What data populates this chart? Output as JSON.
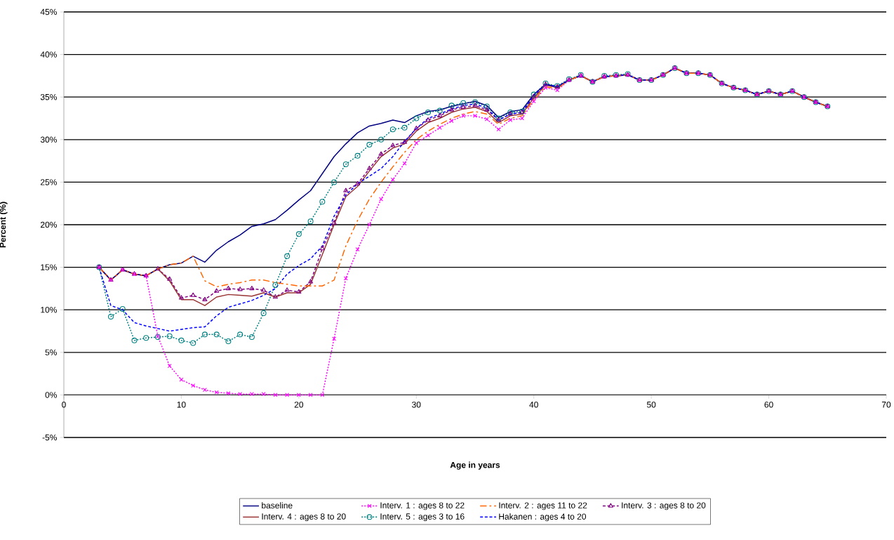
{
  "chart_data": {
    "type": "line",
    "xlabel": "Age in years",
    "ylabel": "Percent (%)",
    "x": [
      3,
      4,
      5,
      6,
      7,
      8,
      9,
      10,
      11,
      12,
      13,
      14,
      15,
      16,
      17,
      18,
      19,
      20,
      21,
      22,
      23,
      24,
      25,
      26,
      27,
      28,
      29,
      30,
      31,
      32,
      33,
      34,
      35,
      36,
      37,
      38,
      39,
      40,
      41,
      42,
      43,
      44,
      45,
      46,
      47,
      48,
      49,
      50,
      51,
      52,
      53,
      54,
      55,
      56,
      57,
      58,
      59,
      60,
      61,
      62,
      63,
      64,
      65
    ],
    "xlim": [
      0,
      70
    ],
    "xticks": [
      0,
      10,
      20,
      30,
      40,
      50,
      60,
      70
    ],
    "ylim": [
      -5,
      45
    ],
    "yticks": [
      {
        "value": -5,
        "label": "-5%"
      },
      {
        "value": 0,
        "label": "0%"
      },
      {
        "value": 5,
        "label": "5%"
      },
      {
        "value": 10,
        "label": "10%"
      },
      {
        "value": 15,
        "label": "15%"
      },
      {
        "value": 20,
        "label": "20%"
      },
      {
        "value": 25,
        "label": "25%"
      },
      {
        "value": 30,
        "label": "30%"
      },
      {
        "value": 35,
        "label": "35%"
      },
      {
        "value": 40,
        "label": "40%"
      },
      {
        "value": 45,
        "label": "45%"
      }
    ],
    "grid": "y",
    "legend": "bottom",
    "series": [
      {
        "name": "baseline",
        "color": "#000080",
        "marker": "none",
        "line_style": "solid",
        "values": [
          15,
          13.5,
          14.7,
          14.2,
          14.0,
          14.8,
          15.3,
          15.5,
          16.3,
          15.6,
          17.0,
          18.0,
          18.8,
          19.8,
          20.1,
          20.6,
          21.7,
          22.9,
          24.0,
          26.0,
          28.0,
          29.5,
          30.8,
          31.6,
          31.9,
          32.3,
          32.0,
          32.8,
          33.3,
          33.5,
          33.9,
          34.2,
          34.5,
          34.0,
          32.6,
          33.3,
          33.5,
          35.3,
          36.5,
          36.2,
          37.0,
          37.5,
          36.8,
          37.4,
          37.5,
          37.6,
          37.0,
          37.0,
          37.6,
          38.4,
          37.8,
          37.8,
          37.6,
          36.6,
          36.1,
          35.8,
          35.3,
          35.7,
          35.3,
          35.7,
          35.0,
          34.4,
          33.9
        ]
      },
      {
        "name": "Interv. 1 : ages 8 to 22",
        "color": "#ff00ff",
        "marker": "cross",
        "line_style": "dotted",
        "values": [
          15,
          13.5,
          14.7,
          14.2,
          14.0,
          6.9,
          3.4,
          1.8,
          1.1,
          0.6,
          0.3,
          0.2,
          0.1,
          0.1,
          0.1,
          0,
          0,
          0,
          0,
          0,
          6.6,
          13.7,
          17.1,
          20.0,
          23.0,
          25.3,
          27.2,
          29.6,
          30.5,
          31.4,
          32.2,
          32.8,
          32.8,
          32.4,
          31.2,
          32.3,
          32.5,
          34.5,
          36.1,
          35.8,
          37.0,
          37.5,
          36.8,
          37.4,
          37.5,
          37.6,
          37.0,
          37.0,
          37.6,
          38.4,
          37.8,
          37.8,
          37.6,
          36.6,
          36.1,
          35.8,
          35.3,
          35.7,
          35.3,
          35.7,
          35.0,
          34.4,
          33.9
        ]
      },
      {
        "name": "Interv. 2 : ages 11 to 22",
        "color": "#ff6600",
        "marker": "none",
        "line_style": "dashdot",
        "values": [
          15,
          13.5,
          14.7,
          14.2,
          14.0,
          14.8,
          15.3,
          15.5,
          16.3,
          13.4,
          12.7,
          13.0,
          13.2,
          13.5,
          13.5,
          13.2,
          13.0,
          12.8,
          12.8,
          12.8,
          13.5,
          17.5,
          20.5,
          23.0,
          25.0,
          26.8,
          28.5,
          30.0,
          31.0,
          31.8,
          32.5,
          33.0,
          33.3,
          33.0,
          31.8,
          32.5,
          32.8,
          34.7,
          36.2,
          36.0,
          37.0,
          37.5,
          36.8,
          37.4,
          37.5,
          37.6,
          37.0,
          37.0,
          37.6,
          38.4,
          37.8,
          37.8,
          37.6,
          36.6,
          36.1,
          35.8,
          35.3,
          35.7,
          35.3,
          35.7,
          35.0,
          34.4,
          33.9
        ]
      },
      {
        "name": "Interv. 3 : ages 8 to 20",
        "color": "#800080",
        "marker": "triangle",
        "line_style": "dashed",
        "values": [
          15,
          13.5,
          14.7,
          14.2,
          14.0,
          14.8,
          13.6,
          11.4,
          11.7,
          11.2,
          12.2,
          12.5,
          12.4,
          12.5,
          12.3,
          11.5,
          12.3,
          12.1,
          13.3,
          17.2,
          20.2,
          24.0,
          24.8,
          26.6,
          28.3,
          29.3,
          29.7,
          31.3,
          32.3,
          32.8,
          33.5,
          33.8,
          34.0,
          33.5,
          32.3,
          33.0,
          33.2,
          35.0,
          36.5,
          36.2,
          37.0,
          37.5,
          36.8,
          37.4,
          37.5,
          37.6,
          37.0,
          37.0,
          37.6,
          38.4,
          37.8,
          37.8,
          37.6,
          36.6,
          36.1,
          35.8,
          35.3,
          35.7,
          35.3,
          35.7,
          35.0,
          34.4,
          33.9
        ]
      },
      {
        "name": "Interv. 4 : ages 8 to 20",
        "color": "#993333",
        "marker": "none",
        "line_style": "solid",
        "values": [
          15,
          13.5,
          14.7,
          14.2,
          14.0,
          14.8,
          13.4,
          11.2,
          11.2,
          10.5,
          11.5,
          11.8,
          11.7,
          11.6,
          12.0,
          11.5,
          12.0,
          12.0,
          13.0,
          16.5,
          20.0,
          23.3,
          24.5,
          26.3,
          28.0,
          29.0,
          29.5,
          31.0,
          32.0,
          32.5,
          33.2,
          33.6,
          33.8,
          33.3,
          32.0,
          32.8,
          33.0,
          34.9,
          36.4,
          36.1,
          37.0,
          37.5,
          36.8,
          37.4,
          37.5,
          37.6,
          37.0,
          37.0,
          37.6,
          38.4,
          37.8,
          37.8,
          37.6,
          36.6,
          36.1,
          35.8,
          35.3,
          35.7,
          35.3,
          35.7,
          35.0,
          34.4,
          33.9
        ]
      },
      {
        "name": "Interv. 5 : ages 3 to 16",
        "color": "#008080",
        "marker": "circle",
        "line_style": "dotted",
        "values": [
          15,
          9.2,
          10.1,
          6.4,
          6.7,
          6.8,
          6.9,
          6.4,
          6.1,
          7.1,
          7.1,
          6.3,
          7.1,
          6.8,
          9.6,
          12.9,
          16.3,
          18.9,
          20.4,
          22.7,
          25.0,
          27.1,
          28.1,
          29.4,
          30.0,
          31.2,
          31.4,
          32.5,
          33.2,
          33.4,
          34.0,
          34.3,
          34.4,
          33.9,
          32.5,
          33.2,
          33.3,
          35.3,
          36.6,
          36.3,
          37.1,
          37.6,
          36.8,
          37.5,
          37.6,
          37.7,
          37.0,
          37.0,
          37.6,
          38.4,
          37.8,
          37.8,
          37.6,
          36.6,
          36.1,
          35.8,
          35.3,
          35.7,
          35.3,
          35.7,
          35.0,
          34.4,
          33.9
        ]
      },
      {
        "name": "Hakanen : ages 4 to 20",
        "color": "#0000ff",
        "marker": "none",
        "line_style": "dashed",
        "values": [
          15,
          10.5,
          10.0,
          8.5,
          8.1,
          7.8,
          7.5,
          7.7,
          7.9,
          8.0,
          9.3,
          10.3,
          10.7,
          11.1,
          11.7,
          12.5,
          14.2,
          15.2,
          16.0,
          17.5,
          21.0,
          23.5,
          24.8,
          25.7,
          26.6,
          28.0,
          29.8,
          31.3,
          32.5,
          33.0,
          33.6,
          34.0,
          34.2,
          33.7,
          32.3,
          33.0,
          33.2,
          35.2,
          36.5,
          36.2,
          37.0,
          37.5,
          36.8,
          37.4,
          37.5,
          37.6,
          37.0,
          37.0,
          37.6,
          38.4,
          37.8,
          37.8,
          37.6,
          36.6,
          36.1,
          35.8,
          35.3,
          35.7,
          35.3,
          35.7,
          35.0,
          34.4,
          33.9
        ]
      }
    ]
  }
}
